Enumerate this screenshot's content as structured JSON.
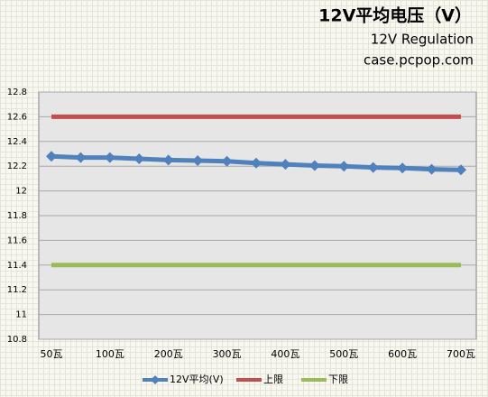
{
  "chart_data": {
    "type": "line",
    "title": "12V平均电压（V）",
    "subtitle": "12V Regulation",
    "source": "case.pcpop.com",
    "categories": [
      "50瓦",
      null,
      "100瓦",
      null,
      "200瓦",
      null,
      "300瓦",
      null,
      "400瓦",
      null,
      "500瓦",
      null,
      "600瓦",
      null,
      "700瓦"
    ],
    "series": [
      {
        "name": "12V平均(V)",
        "color": "#4f81bd",
        "marker": "diamond",
        "values": [
          12.28,
          12.27,
          12.27,
          12.26,
          12.25,
          12.245,
          12.24,
          12.225,
          12.215,
          12.205,
          12.2,
          12.19,
          12.185,
          12.175,
          12.17
        ]
      },
      {
        "name": "上限",
        "color": "#c0504d",
        "values": [
          12.6,
          12.6,
          12.6,
          12.6,
          12.6,
          12.6,
          12.6,
          12.6,
          12.6,
          12.6,
          12.6,
          12.6,
          12.6,
          12.6,
          12.6
        ]
      },
      {
        "name": "下限",
        "color": "#9bbb59",
        "values": [
          11.4,
          11.4,
          11.4,
          11.4,
          11.4,
          11.4,
          11.4,
          11.4,
          11.4,
          11.4,
          11.4,
          11.4,
          11.4,
          11.4,
          11.4
        ]
      }
    ],
    "ylim": [
      10.8,
      12.8
    ],
    "yticks": [
      10.8,
      11,
      11.2,
      11.4,
      11.6,
      11.8,
      12,
      12.2,
      12.4,
      12.6,
      12.8
    ],
    "grid": true,
    "legend": "bottom"
  }
}
